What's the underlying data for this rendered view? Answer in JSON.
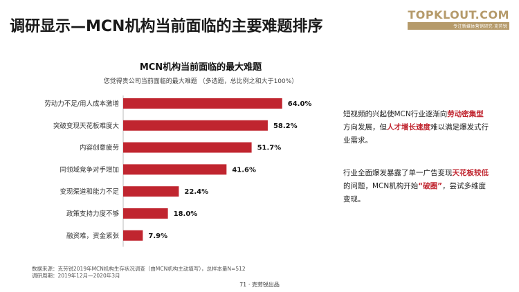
{
  "header": {
    "title": "调研显示—MCN机构当前面临的主要难题排序",
    "logo_main": "TOPKLOUT.COM",
    "logo_sub": "专注新媒体营销研究·克劳锐"
  },
  "chart_data": {
    "type": "bar",
    "orientation": "horizontal",
    "title": "MCN机构当前面临的最大难题",
    "subtitle": "您觉得贵公司当前面临的最大难题 （多选题，总比例之和大于100%）",
    "categories": [
      "劳动力不足/用人成本激增",
      "突破变现天花板难度大",
      "内容创意疲劳",
      "同领域竞争对手增加",
      "变现渠道和能力不足",
      "政策支持力度不够",
      "融资难，资金紧张"
    ],
    "values": [
      64.0,
      58.2,
      51.7,
      41.6,
      22.4,
      18.0,
      7.9
    ],
    "value_labels": [
      "64.0%",
      "58.2%",
      "51.7%",
      "41.6%",
      "22.4%",
      "18.0%",
      "7.9%"
    ],
    "bar_color": "#c0252f",
    "xlim": [
      0,
      100
    ],
    "grid": false
  },
  "notes": [
    {
      "segments": [
        {
          "text": "短视频的兴起使MCN行业逐渐向",
          "hl": false
        },
        {
          "text": "劳动密集型",
          "hl": true
        },
        {
          "text": "方向发展，但",
          "hl": false
        },
        {
          "text": "人才增长速度",
          "hl": true
        },
        {
          "text": "难以满足爆发式行业需求。",
          "hl": false
        }
      ]
    },
    {
      "segments": [
        {
          "text": "行业全面爆发暴露了单一广告变现",
          "hl": false
        },
        {
          "text": "天花板较低",
          "hl": true
        },
        {
          "text": "的问题，MCN机构开始",
          "hl": false
        },
        {
          "text": "“破圈”",
          "hl": true
        },
        {
          "text": "，尝试多维度变现。",
          "hl": false
        }
      ]
    }
  ],
  "footer": {
    "source": "数据来源：克劳锐2019年MCN机构生存状况调查（由MCN机构主动填写），总样本量N=512",
    "period": "调研周期：2019年12月—2020年3月"
  },
  "page_number": "71 · 克劳锐出品"
}
